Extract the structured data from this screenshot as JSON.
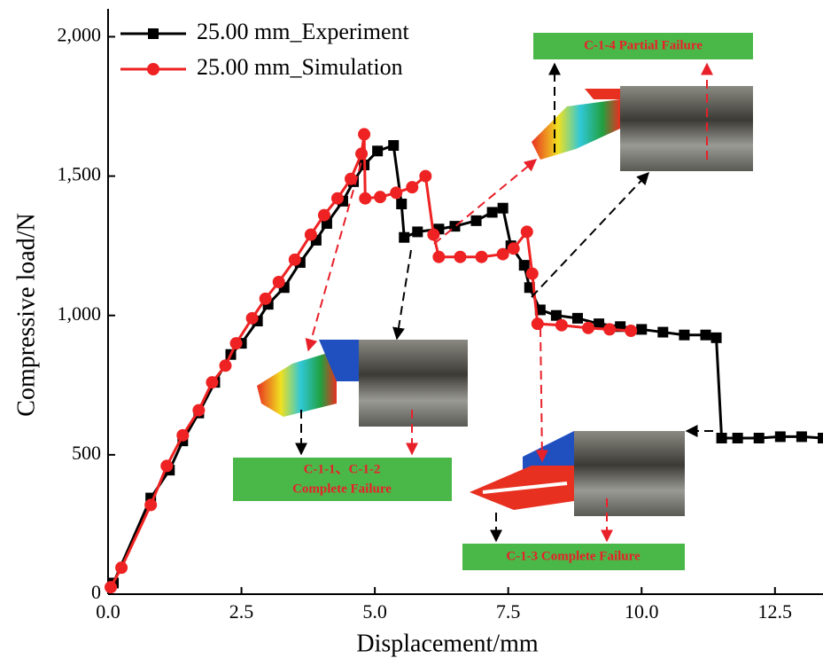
{
  "chart_data": {
    "type": "line",
    "xlabel": "Displacement/mm",
    "ylabel": "Compressive load/N",
    "xlim": [
      0,
      13.4
    ],
    "ylim": [
      0,
      2100
    ],
    "xticks": [
      {
        "value": 0,
        "label": "0.0"
      },
      2.5,
      {
        "value": 5,
        "label": "5.0"
      },
      {
        "value": 7.5,
        "label": "7.5"
      },
      {
        "value": 10,
        "label": "10.0"
      },
      12.5
    ],
    "yticks": [
      0,
      500,
      {
        "value": 1000,
        "label": "1,000"
      },
      {
        "value": 1500,
        "label": "1,500"
      },
      {
        "value": 2000,
        "label": "2,000"
      }
    ],
    "legend": "upper left",
    "series": [
      {
        "name": "25.00 mm_Experiment",
        "color": "#000000",
        "marker": "square",
        "x": [
          0.1,
          0.8,
          1.15,
          1.4,
          1.7,
          2.0,
          2.3,
          2.5,
          2.8,
          3.0,
          3.3,
          3.6,
          3.9,
          4.1,
          4.4,
          4.6,
          4.8,
          5.05,
          5.35,
          5.5,
          5.55,
          5.8,
          6.2,
          6.5,
          6.9,
          7.2,
          7.4,
          7.55,
          7.8,
          7.9,
          8.1,
          8.4,
          8.8,
          9.2,
          9.6,
          10.0,
          10.4,
          10.8,
          11.2,
          11.4,
          11.5,
          11.8,
          12.2,
          12.6,
          13.0,
          13.4
        ],
        "values": [
          40,
          345,
          445,
          550,
          650,
          760,
          860,
          900,
          980,
          1040,
          1100,
          1190,
          1270,
          1330,
          1410,
          1480,
          1540,
          1590,
          1610,
          1400,
          1280,
          1300,
          1310,
          1320,
          1340,
          1370,
          1385,
          1250,
          1180,
          1100,
          1020,
          1000,
          990,
          970,
          960,
          950,
          940,
          930,
          930,
          920,
          560,
          560,
          560,
          565,
          565,
          560
        ]
      },
      {
        "name": "25.00 mm_Simulation",
        "color": "#ee2222",
        "marker": "circle",
        "x": [
          0.05,
          0.25,
          0.8,
          1.1,
          1.4,
          1.7,
          1.95,
          2.2,
          2.4,
          2.7,
          2.95,
          3.2,
          3.5,
          3.8,
          4.05,
          4.3,
          4.55,
          4.75,
          4.8,
          4.82,
          5.1,
          5.4,
          5.7,
          5.95,
          6.1,
          6.2,
          6.6,
          7.0,
          7.4,
          7.6,
          7.85,
          7.95,
          8.05,
          8.5,
          9.0,
          9.4,
          9.8
        ],
        "values": [
          25,
          95,
          320,
          460,
          570,
          660,
          760,
          820,
          900,
          990,
          1060,
          1120,
          1200,
          1290,
          1360,
          1420,
          1490,
          1580,
          1650,
          1420,
          1425,
          1440,
          1460,
          1500,
          1290,
          1210,
          1210,
          1210,
          1220,
          1240,
          1300,
          1150,
          970,
          965,
          955,
          950,
          945
        ]
      }
    ],
    "annotations": [
      "C-1-4 Partial Failure",
      "C-1-1、C-1-2",
      "Complete Failure",
      "C-1-3 Complete Failure"
    ]
  }
}
